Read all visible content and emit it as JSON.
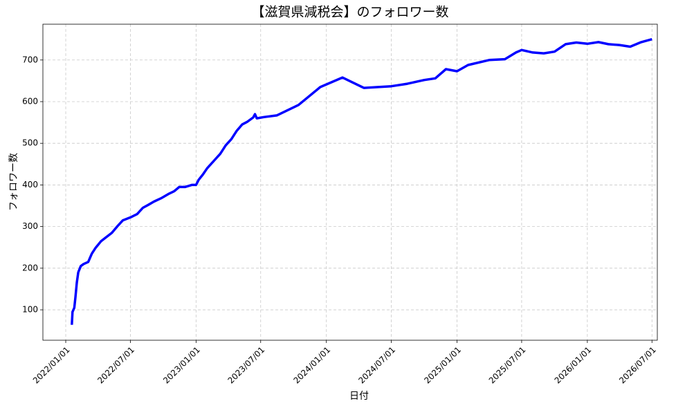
{
  "chart_data": {
    "type": "line",
    "title": "【滋賀県減税会】のフォロワー数",
    "xlabel": "日付",
    "ylabel": "フォロワー数",
    "x": [
      "2022/01/18",
      "2022/01/20",
      "2022/01/25",
      "2022/01/28",
      "2022/02/01",
      "2022/02/05",
      "2022/02/12",
      "2022/02/20",
      "2022/03/05",
      "2022/03/15",
      "2022/03/25",
      "2022/04/10",
      "2022/04/25",
      "2022/05/10",
      "2022/05/25",
      "2022/06/10",
      "2022/07/01",
      "2022/07/20",
      "2022/08/05",
      "2022/08/20",
      "2022/09/05",
      "2022/09/25",
      "2022/10/15",
      "2022/11/01",
      "2022/11/15",
      "2022/12/01",
      "2022/12/20",
      "2023/01/01",
      "2023/01/08",
      "2023/01/20",
      "2023/02/01",
      "2023/02/20",
      "2023/03/10",
      "2023/03/25",
      "2023/04/10",
      "2023/04/25",
      "2023/05/10",
      "2023/05/25",
      "2023/06/10",
      "2023/06/15",
      "2023/06/20",
      "2023/07/10",
      "2023/08/15",
      "2023/10/15",
      "2023/12/15",
      "2024/02/15",
      "2024/04/15",
      "2024/07/01",
      "2024/08/15",
      "2024/10/01",
      "2024/11/01",
      "2024/12/01",
      "2025/01/01",
      "2025/02/01",
      "2025/04/01",
      "2025/05/15",
      "2025/06/15",
      "2025/07/01",
      "2025/08/01",
      "2025/09/01",
      "2025/10/01",
      "2025/11/01",
      "2025/12/01",
      "2026/01/01",
      "2026/02/01",
      "2026/03/01",
      "2026/04/01",
      "2026/05/01",
      "2026/06/01",
      "2026/07/01"
    ],
    "values": [
      64,
      95,
      105,
      130,
      165,
      190,
      205,
      210,
      215,
      235,
      248,
      265,
      275,
      285,
      300,
      315,
      322,
      330,
      345,
      352,
      360,
      368,
      378,
      385,
      395,
      395,
      400,
      400,
      412,
      425,
      440,
      458,
      475,
      495,
      510,
      530,
      545,
      552,
      562,
      570,
      560,
      563,
      567,
      592,
      635,
      658,
      633,
      637,
      643,
      652,
      656,
      678,
      673,
      688,
      700,
      702,
      718,
      724,
      718,
      716,
      720,
      738,
      742,
      739,
      743,
      738,
      736,
      732,
      743,
      750
    ],
    "color": "#0000ff",
    "xlim": [
      "2021/10/29",
      "2026/07/16"
    ],
    "xticks": [
      "2022/01/01",
      "2022/07/01",
      "2023/01/01",
      "2023/07/01",
      "2024/01/01",
      "2024/07/01",
      "2025/01/01",
      "2025/07/01",
      "2026/01/01",
      "2026/07/01"
    ],
    "ylim": [
      27,
      786
    ],
    "yticks": [
      100,
      200,
      300,
      400,
      500,
      600,
      700
    ],
    "grid": true
  }
}
